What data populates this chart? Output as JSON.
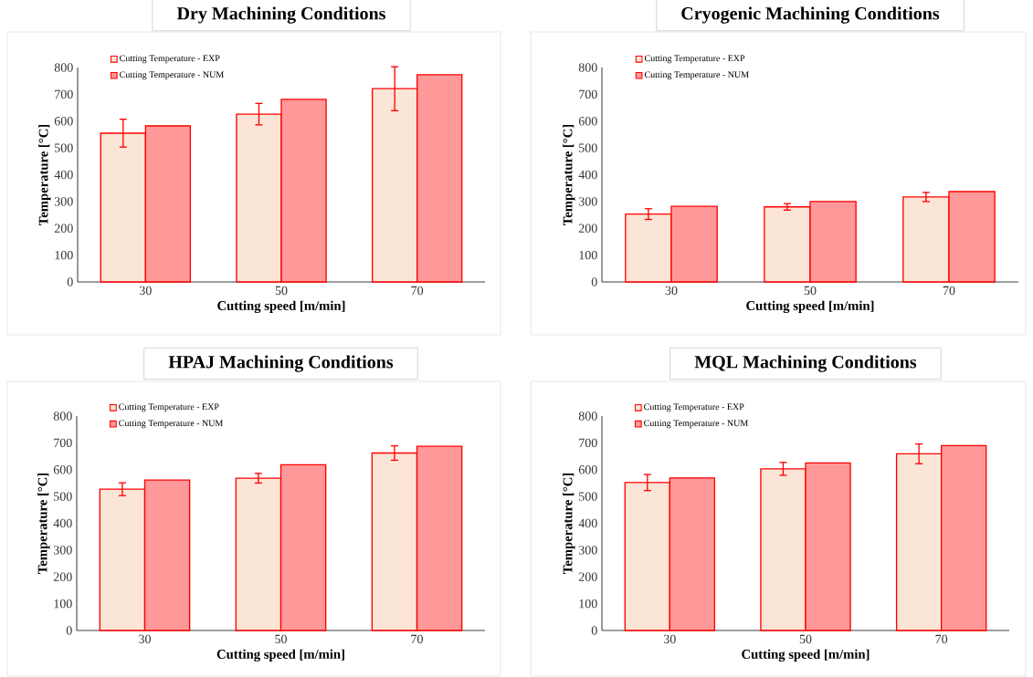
{
  "chart_data": [
    {
      "type": "bar",
      "title": "Dry Machining Conditions",
      "xlabel": "Cutting speed [m/min]",
      "ylabel": "Temperature [°C]",
      "categories": [
        "30",
        "50",
        "70"
      ],
      "ylim": [
        0,
        800
      ],
      "yticks": [
        0,
        100,
        200,
        300,
        400,
        500,
        600,
        700,
        800
      ],
      "legend": "top left",
      "series": [
        {
          "name": "Cutting Temperature - EXP",
          "color": "#fbe5d6",
          "values": [
            555,
            626,
            721
          ],
          "errors": [
            52,
            40,
            82
          ]
        },
        {
          "name": "Cutting Temperature - NUM",
          "color": "#ff0000",
          "values": [
            582,
            681,
            773
          ]
        }
      ]
    },
    {
      "type": "bar",
      "title": "Cryogenic Machining Conditions",
      "xlabel": "Cutting speed [m/min]",
      "ylabel": "Temperature [°C]",
      "categories": [
        "30",
        "50",
        "70"
      ],
      "ylim": [
        0,
        800
      ],
      "yticks": [
        0,
        100,
        200,
        300,
        400,
        500,
        600,
        700,
        800
      ],
      "legend": "top left",
      "series": [
        {
          "name": "Cutting Temperature - EXP",
          "color": "#fbe5d6",
          "values": [
            253,
            280,
            317
          ],
          "errors": [
            20,
            12,
            17
          ]
        },
        {
          "name": "Cutting Temperature - NUM",
          "color": "#ff0000",
          "values": [
            282,
            300,
            337
          ]
        }
      ]
    },
    {
      "type": "bar",
      "title": "HPAJ Machining Conditions",
      "xlabel": "Cutting speed [m/min]",
      "ylabel": "Temperature [°C]",
      "categories": [
        "30",
        "50",
        "70"
      ],
      "ylim": [
        0,
        800
      ],
      "yticks": [
        0,
        100,
        200,
        300,
        400,
        500,
        600,
        700,
        800
      ],
      "legend": "top left",
      "series": [
        {
          "name": "Cutting Temperature - EXP",
          "color": "#fbe5d6",
          "values": [
            527,
            568,
            662
          ],
          "errors": [
            24,
            18,
            27
          ]
        },
        {
          "name": "Cutting Temperature - NUM",
          "color": "#ff0000",
          "values": [
            561,
            618,
            687
          ]
        }
      ]
    },
    {
      "type": "bar",
      "title": "MQL Machining Conditions",
      "xlabel": "Cutting speed [m/min]",
      "ylabel": "Temperature [°C]",
      "categories": [
        "30",
        "50",
        "70"
      ],
      "ylim": [
        0,
        800
      ],
      "yticks": [
        0,
        100,
        200,
        300,
        400,
        500,
        600,
        700,
        800
      ],
      "legend": "top left",
      "series": [
        {
          "name": "Cutting Temperature - EXP",
          "color": "#fbe5d6",
          "values": [
            552,
            603,
            659
          ],
          "errors": [
            30,
            24,
            37
          ]
        },
        {
          "name": "Cutting Temperature - NUM",
          "color": "#ff0000",
          "values": [
            569,
            625,
            690
          ]
        }
      ]
    }
  ]
}
